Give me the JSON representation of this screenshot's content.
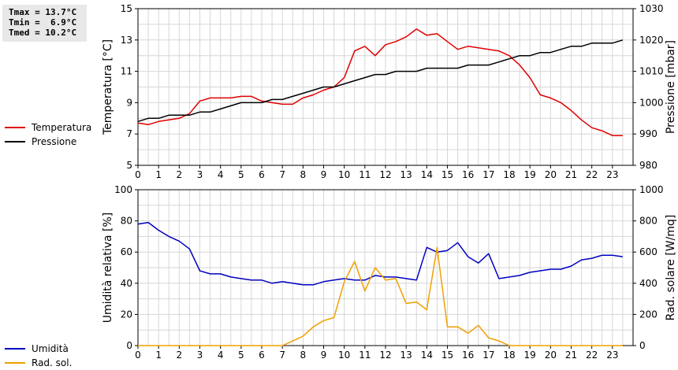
{
  "stats": {
    "tmax": "Tmax = 13.7°C",
    "tmin": "Tmin =  6.9°C",
    "tmed": "Tmed = 10.2°C"
  },
  "chart_data": [
    {
      "type": "line",
      "title": "",
      "xlabel": "",
      "ylabel": "Temperatura [°C]",
      "y2label": "Pressione [mbar]",
      "xlim": [
        0,
        24
      ],
      "ylim": [
        5,
        15
      ],
      "y2lim": [
        980,
        1030
      ],
      "xticks": [
        "0",
        "1",
        "2",
        "3",
        "4",
        "5",
        "6",
        "7",
        "8",
        "9",
        "10",
        "11",
        "12",
        "13",
        "14",
        "15",
        "16",
        "17",
        "18",
        "19",
        "20",
        "21",
        "22",
        "23"
      ],
      "yticks": [
        "5",
        "7",
        "9",
        "11",
        "13",
        "15"
      ],
      "y2ticks": [
        "980",
        "990",
        "1000",
        "1010",
        "1020",
        "1030"
      ],
      "grid": true,
      "legend_placement": "left",
      "series": [
        {
          "name": "Temperatura",
          "axis": "left",
          "color": "#e00000",
          "x": [
            0,
            0.5,
            1,
            1.5,
            2,
            2.5,
            3,
            3.5,
            4,
            4.5,
            5,
            5.5,
            6,
            6.5,
            7,
            7.5,
            8,
            8.5,
            9,
            9.5,
            10,
            10.5,
            11,
            11.5,
            12,
            12.5,
            13,
            13.5,
            14,
            14.5,
            15,
            15.5,
            16,
            16.5,
            17,
            17.5,
            18,
            18.5,
            19,
            19.5,
            20,
            20.5,
            21,
            21.5,
            22,
            22.5,
            23,
            23.5
          ],
          "y": [
            7.7,
            7.6,
            7.8,
            7.9,
            8.0,
            8.3,
            9.1,
            9.3,
            9.3,
            9.3,
            9.4,
            9.4,
            9.1,
            9.0,
            8.9,
            8.9,
            9.3,
            9.5,
            9.8,
            10.0,
            10.6,
            12.3,
            12.6,
            12.0,
            12.7,
            12.9,
            13.2,
            13.7,
            13.3,
            13.4,
            12.9,
            12.4,
            12.6,
            12.5,
            12.4,
            12.3,
            12.0,
            11.4,
            10.6,
            9.5,
            9.3,
            9.0,
            8.5,
            7.9,
            7.4,
            7.2,
            6.9,
            6.9
          ]
        },
        {
          "name": "Pressione",
          "axis": "right",
          "color": "#000000",
          "x": [
            0,
            0.5,
            1,
            1.5,
            2,
            2.5,
            3,
            3.5,
            4,
            4.5,
            5,
            5.5,
            6,
            6.5,
            7,
            7.5,
            8,
            8.5,
            9,
            9.5,
            10,
            10.5,
            11,
            11.5,
            12,
            12.5,
            13,
            13.5,
            14,
            14.5,
            15,
            15.5,
            16,
            16.5,
            17,
            17.5,
            18,
            18.5,
            19,
            19.5,
            20,
            20.5,
            21,
            21.5,
            22,
            22.5,
            23,
            23.5
          ],
          "y": [
            994,
            995,
            995,
            996,
            996,
            996,
            997,
            997,
            998,
            999,
            1000,
            1000,
            1000,
            1001,
            1001,
            1002,
            1003,
            1004,
            1005,
            1005,
            1006,
            1007,
            1008,
            1009,
            1009,
            1010,
            1010,
            1010,
            1011,
            1011,
            1011,
            1011,
            1012,
            1012,
            1012,
            1013,
            1014,
            1015,
            1015,
            1016,
            1016,
            1017,
            1018,
            1018,
            1019,
            1019,
            1019,
            1020
          ]
        }
      ]
    },
    {
      "type": "line",
      "title": "",
      "xlabel": "",
      "ylabel": "Umidità relativa [%]",
      "y2label": "Rad. solare [W/mq]",
      "xlim": [
        0,
        24
      ],
      "ylim": [
        0,
        100
      ],
      "y2lim": [
        0,
        1000
      ],
      "xticks": [
        "0",
        "1",
        "2",
        "3",
        "4",
        "5",
        "6",
        "7",
        "8",
        "9",
        "10",
        "11",
        "12",
        "13",
        "14",
        "15",
        "16",
        "17",
        "18",
        "19",
        "20",
        "21",
        "22",
        "23"
      ],
      "yticks": [
        "0",
        "20",
        "40",
        "60",
        "80",
        "100"
      ],
      "y2ticks": [
        "0",
        "200",
        "400",
        "600",
        "800",
        "1000"
      ],
      "grid": true,
      "legend_placement": "left",
      "series": [
        {
          "name": "Umidità",
          "axis": "left",
          "color": "#0000c0",
          "x": [
            0,
            0.5,
            1,
            1.5,
            2,
            2.5,
            3,
            3.5,
            4,
            4.5,
            5,
            5.5,
            6,
            6.5,
            7,
            7.5,
            8,
            8.5,
            9,
            9.5,
            10,
            10.5,
            11,
            11.5,
            12,
            12.5,
            13,
            13.5,
            14,
            14.5,
            15,
            15.5,
            16,
            16.5,
            17,
            17.5,
            18,
            18.5,
            19,
            19.5,
            20,
            20.5,
            21,
            21.5,
            22,
            22.5,
            23,
            23.5
          ],
          "y": [
            78,
            79,
            74,
            70,
            67,
            62,
            48,
            46,
            46,
            44,
            43,
            42,
            42,
            40,
            41,
            40,
            39,
            39,
            41,
            42,
            43,
            42,
            42,
            45,
            44,
            44,
            43,
            42,
            63,
            60,
            61,
            66,
            57,
            53,
            59,
            43,
            44,
            45,
            47,
            48,
            49,
            49,
            51,
            55,
            56,
            58,
            58,
            57
          ]
        },
        {
          "name": "Rad. sol.",
          "axis": "right",
          "color": "#f0a000",
          "x": [
            0,
            0.5,
            1,
            1.5,
            2,
            2.5,
            3,
            3.5,
            4,
            4.5,
            5,
            5.5,
            6,
            6.5,
            7,
            7.5,
            8,
            8.5,
            9,
            9.5,
            10,
            10.5,
            11,
            11.5,
            12,
            12.5,
            13,
            13.5,
            14,
            14.5,
            15,
            15.5,
            16,
            16.5,
            17,
            17.5,
            18,
            18.5,
            19,
            19.5,
            20,
            20.5,
            21,
            21.5,
            22,
            22.5,
            23,
            23.5
          ],
          "y": [
            0,
            0,
            0,
            0,
            0,
            0,
            0,
            0,
            0,
            0,
            0,
            0,
            0,
            0,
            0,
            30,
            60,
            120,
            160,
            180,
            410,
            540,
            350,
            500,
            420,
            430,
            270,
            280,
            230,
            630,
            120,
            120,
            80,
            130,
            50,
            30,
            0,
            0,
            0,
            0,
            0,
            0,
            0,
            0,
            0,
            0,
            0,
            0
          ]
        }
      ]
    }
  ]
}
